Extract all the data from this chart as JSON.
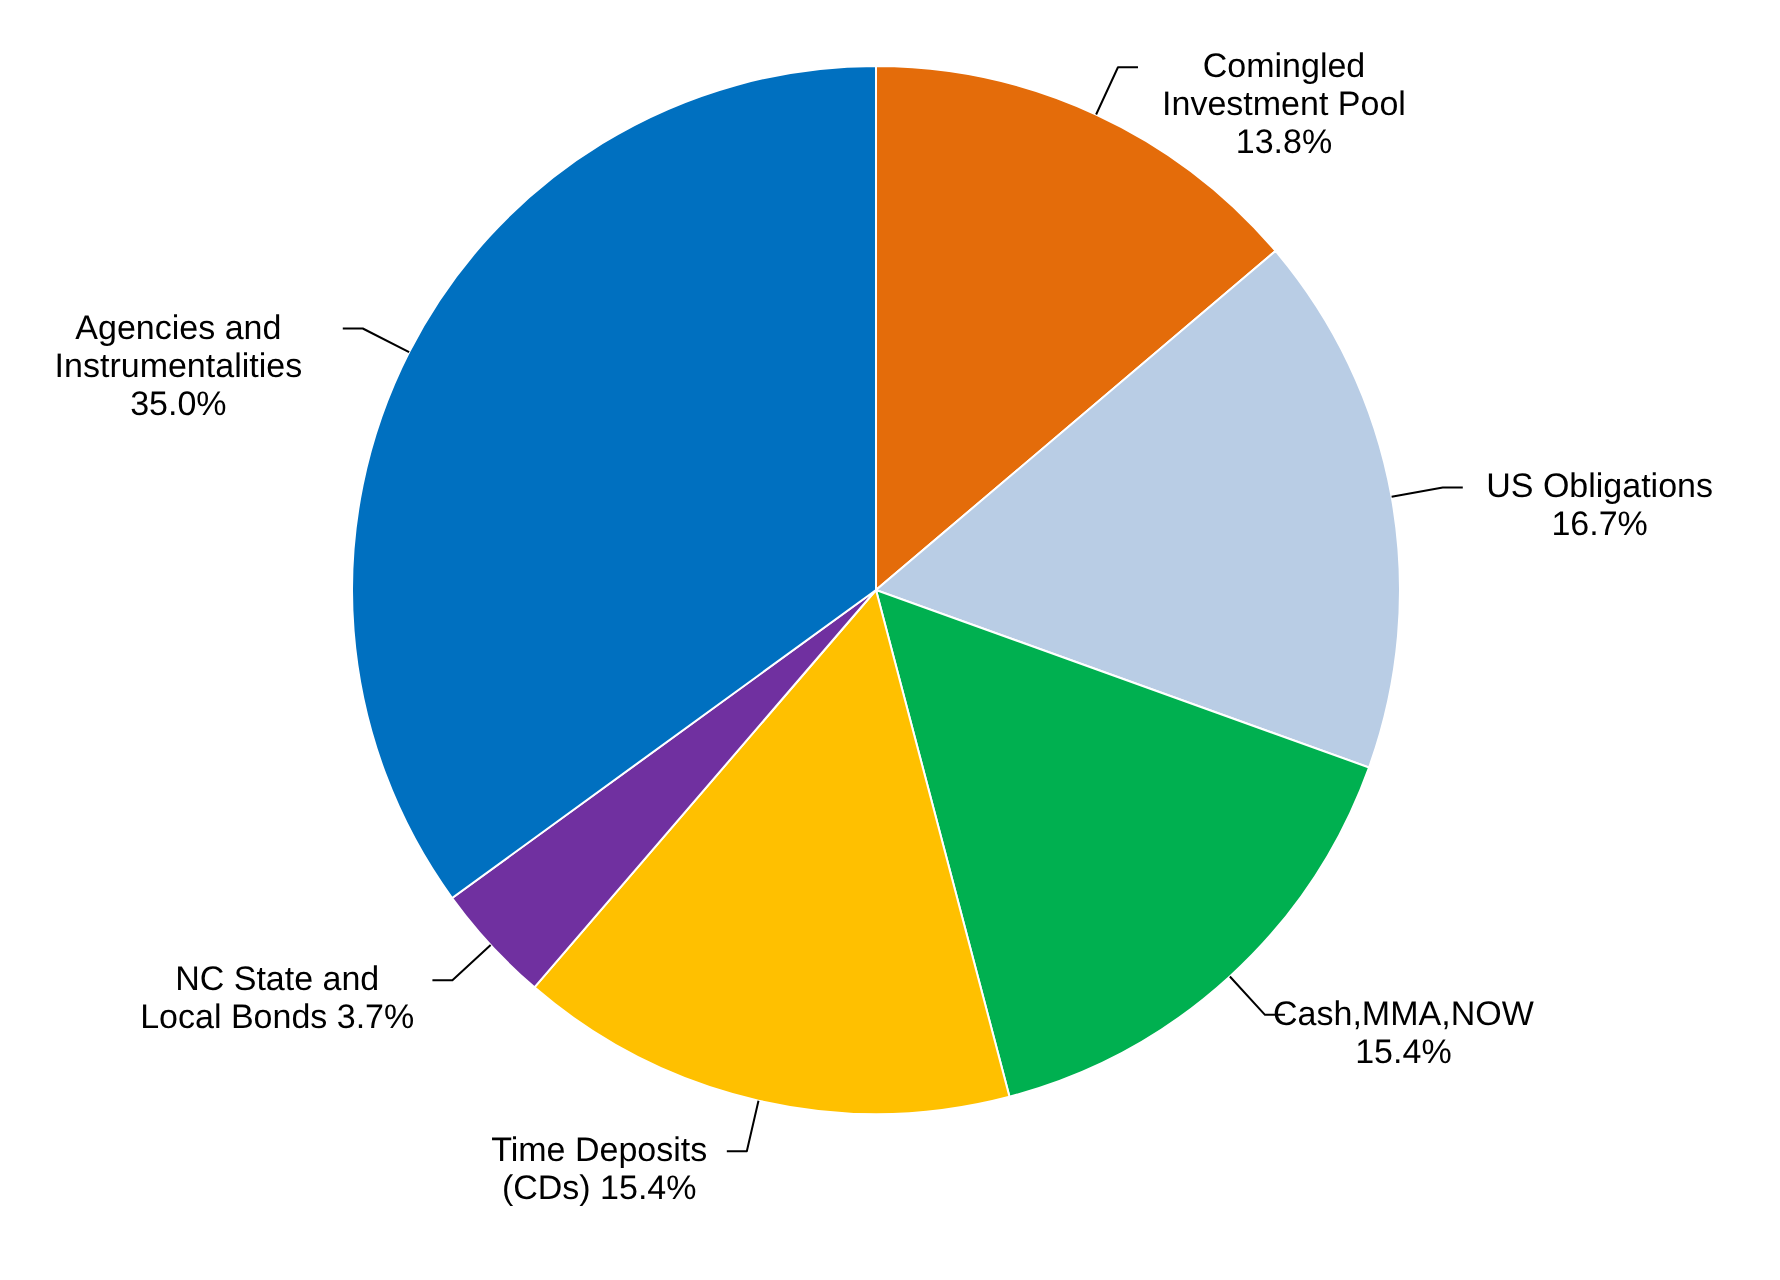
{
  "chart_data": {
    "type": "pie",
    "categories": [
      "Comingled Investment Pool",
      "US Obligations",
      "Cash,MMA,NOW",
      "Time Deposits (CDs)",
      "NC State and Local Bonds",
      "Agencies and Instrumentalities"
    ],
    "values": [
      13.8,
      16.7,
      15.4,
      15.4,
      3.7,
      35.0
    ],
    "colors": [
      "#e46c0a",
      "#b9cde5",
      "#00b050",
      "#ffc000",
      "#7030a0",
      "#0070c0"
    ],
    "value_labels": [
      "13.8%",
      "16.7%",
      "15.4%",
      "15.4%",
      "3.7%",
      "35.0%"
    ]
  }
}
